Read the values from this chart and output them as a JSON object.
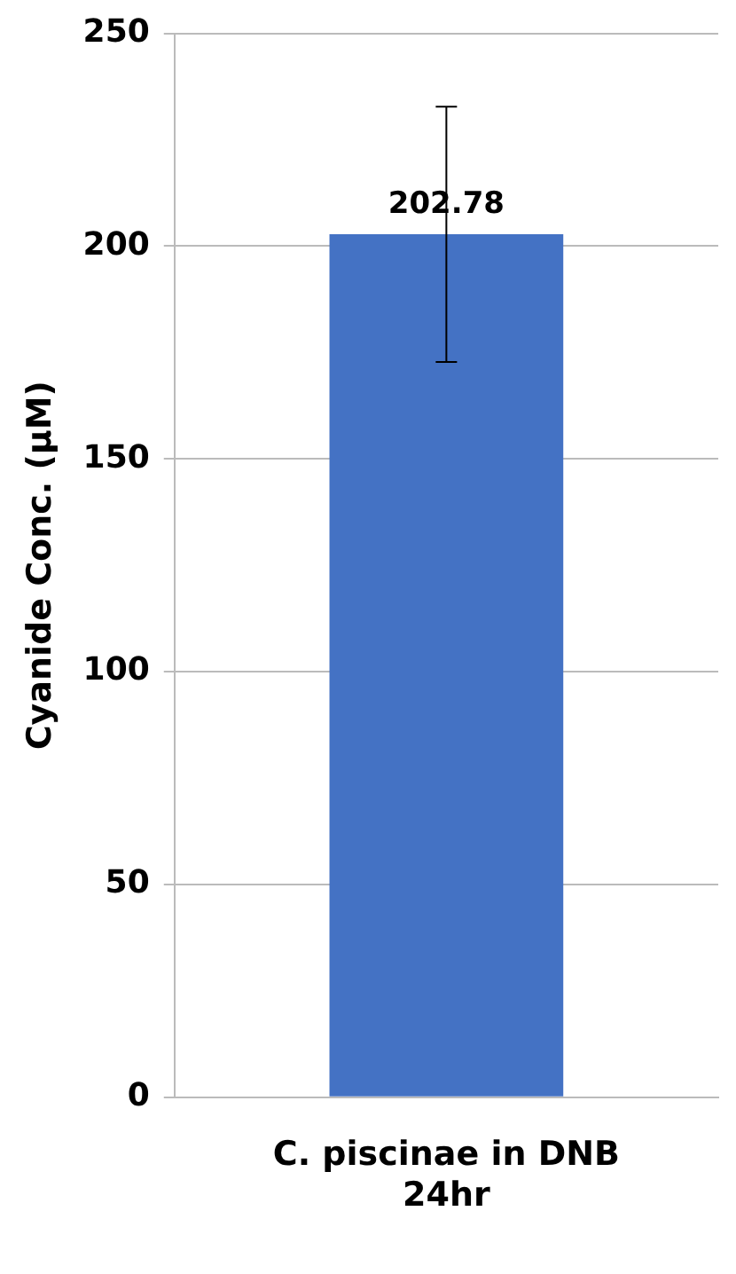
{
  "chart_data": {
    "type": "bar",
    "ylabel": "Cyanide Conc. (μM)",
    "categories": [
      "C. piscinae in DNB 24hr"
    ],
    "values": [
      202.78
    ],
    "errors": [
      30
    ],
    "color": "#4472c4",
    "ylim": [
      0,
      250
    ],
    "yticks": [
      0,
      50,
      100,
      150,
      200,
      250
    ],
    "grid": "y",
    "data_labels": true
  }
}
